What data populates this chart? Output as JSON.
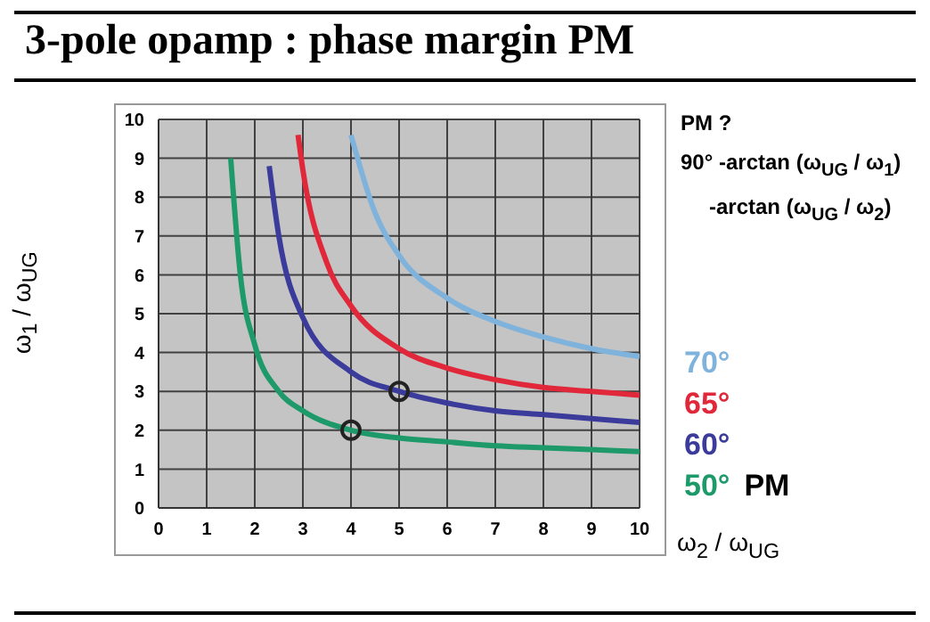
{
  "chart_data": {
    "type": "line",
    "title": "3-pole opamp : phase margin PM",
    "xlabel": "ω$_{2}$ / ω$_{UG}$",
    "ylabel": "ω$_{1}$ / ω$_{UG}$",
    "xlim": [
      0,
      10
    ],
    "ylim": [
      0,
      10
    ],
    "xticks": [
      0,
      1,
      2,
      3,
      4,
      5,
      6,
      7,
      8,
      9,
      10
    ],
    "yticks": [
      0,
      1,
      2,
      3,
      4,
      5,
      6,
      7,
      8,
      9,
      10
    ],
    "grid": true,
    "legend": "right",
    "legend_title": "PM",
    "marker": "none",
    "annotations": [
      "PM ?",
      "90° -arctan (ω$_{UG}$ / ω$_{1}$)",
      "-arctan (ω$_{UG}$ / ω$_{2}$)"
    ],
    "series": [
      {
        "name": "70°",
        "color": "#7fb3dc",
        "x": [
          4,
          4.5,
          5,
          6,
          7,
          8,
          9,
          10
        ],
        "values": [
          9.6,
          7.6,
          6.5,
          5.4,
          4.8,
          4.4,
          4.1,
          3.9
        ]
      },
      {
        "name": "65°",
        "color": "#e0283a",
        "x": [
          2.9,
          3,
          3.5,
          4,
          5,
          6,
          7,
          8,
          9,
          10
        ],
        "values": [
          9.6,
          8.7,
          6.3,
          5.2,
          4.1,
          3.6,
          3.3,
          3.1,
          3,
          2.9
        ]
      },
      {
        "name": "60°",
        "color": "#3b3b9c",
        "x": [
          2.3,
          2.5,
          3,
          4,
          5,
          6,
          7,
          8,
          9,
          10
        ],
        "values": [
          8.8,
          7,
          4.9,
          3.5,
          3,
          2.7,
          2.5,
          2.4,
          2.3,
          2.2
        ]
      },
      {
        "name": "50°",
        "color": "#1e9a6a",
        "x": [
          1.5,
          1.7,
          2,
          2.5,
          3,
          4,
          5,
          6,
          7,
          8,
          9,
          10
        ],
        "values": [
          9,
          6,
          4.2,
          3,
          2.5,
          2,
          1.8,
          1.7,
          1.6,
          1.55,
          1.5,
          1.45
        ]
      },
      {
        "type": "scatter",
        "color": "#222222",
        "marker": "circle",
        "x": [
          5,
          4
        ],
        "values": [
          3,
          2
        ]
      }
    ]
  }
}
